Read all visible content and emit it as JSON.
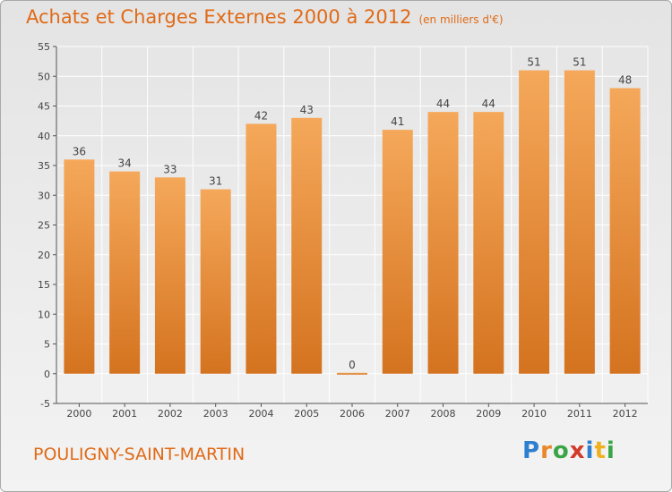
{
  "header": {
    "title": "Achats et Charges Externes 2000 à 2012",
    "unit": "(en milliers d'€)"
  },
  "footer": {
    "commune": "POULIGNY-SAINT-MARTIN",
    "logo": "Proxiti"
  },
  "colors": {
    "accent": "#e06a16",
    "bar_top": "#f5a85a",
    "bar_bottom": "#d4731f",
    "grid": "#ffffff"
  },
  "chart_data": {
    "type": "bar",
    "title": "Achats et Charges Externes 2000 à 2012",
    "subtitle": "(en milliers d'€)",
    "categories": [
      "2000",
      "2001",
      "2002",
      "2003",
      "2004",
      "2005",
      "2006",
      "2007",
      "2008",
      "2009",
      "2010",
      "2011",
      "2012"
    ],
    "values": [
      36,
      34,
      33,
      31,
      42,
      43,
      0,
      41,
      44,
      44,
      51,
      51,
      48
    ],
    "ylim": [
      -5,
      55
    ],
    "yticks": [
      -5,
      0,
      5,
      10,
      15,
      20,
      25,
      30,
      35,
      40,
      45,
      50,
      55
    ],
    "grid": true
  }
}
